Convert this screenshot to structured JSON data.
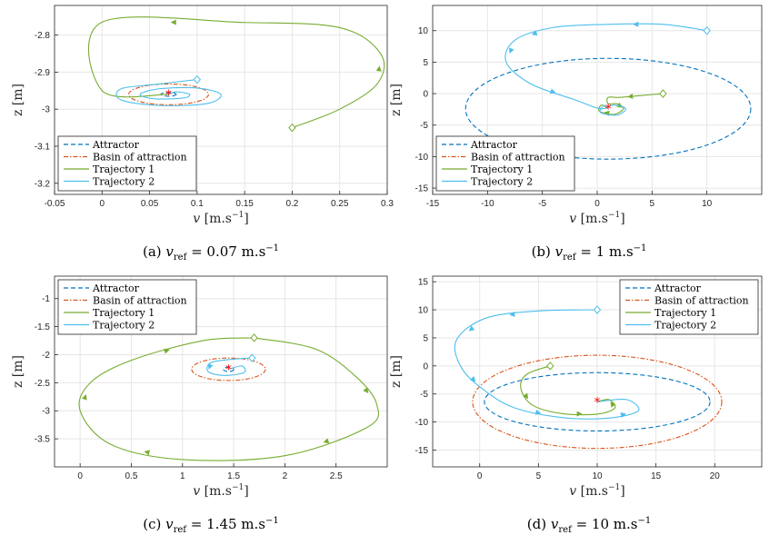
{
  "colors": {
    "attractor": "#0072BD",
    "basin": "#D95319",
    "traj1": "#77AC30",
    "traj2": "#4DBEEE",
    "equilibrium": "#FF0000",
    "grid": "#E6E6E6"
  },
  "chart_data": [
    {
      "type": "line",
      "caption": {
        "tag": "(a)",
        "sub": "ref",
        "value": "= 0.07 m.s",
        "exp": "−1"
      },
      "xlabel_main": "v",
      "xlabel_unit": "[m.s",
      "xlabel_exp": "−1",
      "xlabel_close": "]",
      "ylabel": "z [m]",
      "xlim": [
        -0.05,
        0.3
      ],
      "ylim": [
        -3.23,
        -2.72
      ],
      "xticks": [
        -0.05,
        0,
        0.05,
        0.1,
        0.15,
        0.2,
        0.25,
        0.3
      ],
      "xtick_labels": [
        "-0.05",
        "0",
        "0.05",
        "0.1",
        "0.15",
        "0.2",
        "0.25",
        "0.3"
      ],
      "yticks": [
        -3.2,
        -3.1,
        -3.0,
        -2.9,
        -2.8
      ],
      "ytick_labels": [
        "-3.2",
        "-3.1",
        "-3",
        "-2.9",
        "-2.8"
      ],
      "legend": {
        "placement": "bottom-left",
        "entries": [
          "Attractor",
          "Basin of attraction",
          "Trajectory 1",
          "Trajectory 2"
        ]
      },
      "equilibrium": [
        0.07,
        -2.96
      ],
      "attractor": {
        "center": [
          0.07,
          -2.96
        ],
        "rx": 0.008,
        "ry": 0.005
      },
      "basin": {
        "center": [
          0.07,
          -2.96
        ],
        "rx": 0.042,
        "ry": 0.028
      },
      "traj1": {
        "start": [
          0.2,
          -3.05
        ],
        "path": [
          [
            0.2,
            -3.05
          ],
          [
            0.25,
            -3.0
          ],
          [
            0.29,
            -2.93
          ],
          [
            0.293,
            -2.85
          ],
          [
            0.25,
            -2.78
          ],
          [
            0.15,
            -2.766
          ],
          [
            0.0,
            -2.765
          ],
          [
            0.0,
            -2.95
          ],
          [
            0.07,
            -2.96
          ]
        ],
        "arrows": [
          2,
          5
        ]
      },
      "traj2": {
        "start": [
          0.1,
          -2.92
        ],
        "path": [
          [
            0.1,
            -2.92
          ],
          [
            0.06,
            -2.932
          ],
          [
            0.02,
            -2.945
          ],
          [
            0.02,
            -2.975
          ],
          [
            0.06,
            -2.99
          ],
          [
            0.11,
            -2.985
          ],
          [
            0.125,
            -2.96
          ],
          [
            0.1,
            -2.943
          ],
          [
            0.06,
            -2.945
          ],
          [
            0.04,
            -2.96
          ],
          [
            0.055,
            -2.972
          ],
          [
            0.085,
            -2.97
          ],
          [
            0.092,
            -2.96
          ],
          [
            0.078,
            -2.953
          ],
          [
            0.07,
            -2.96
          ]
        ],
        "arrows": []
      }
    },
    {
      "type": "line",
      "caption": {
        "tag": "(b)",
        "sub": "ref",
        "value": "= 1 m.s",
        "exp": "−1"
      },
      "xlabel_main": "v",
      "xlabel_unit": "[m.s",
      "xlabel_exp": "−1",
      "xlabel_close": "]",
      "ylabel": "z [m]",
      "xlim": [
        -15,
        15
      ],
      "ylim": [
        -16,
        14
      ],
      "xticks": [
        -15,
        -10,
        -5,
        0,
        5,
        10
      ],
      "xtick_labels": [
        "-15",
        "-10",
        "-5",
        "0",
        "5",
        "10"
      ],
      "yticks": [
        -15,
        -10,
        -5,
        0,
        5,
        10
      ],
      "ytick_labels": [
        "-15",
        "-10",
        "-5",
        "0",
        "5",
        "10"
      ],
      "legend": {
        "placement": "bottom-left",
        "entries": [
          "Attractor",
          "Basin of attraction",
          "Trajectory 1",
          "Trajectory 2"
        ]
      },
      "equilibrium": [
        1,
        -2.4
      ],
      "attractor": {
        "center": [
          1,
          -2.4
        ],
        "rx": 13,
        "ry": 8
      },
      "basin": null,
      "traj1": {
        "start": [
          6,
          0
        ],
        "path": [
          [
            6,
            0
          ],
          [
            4,
            -0.3
          ],
          [
            2,
            -0.6
          ],
          [
            1,
            -0.6
          ],
          [
            1,
            -1.6
          ],
          [
            1.8,
            -1.6
          ],
          [
            2.4,
            -2.4
          ],
          [
            1.5,
            -3.3
          ],
          [
            0.2,
            -2.8
          ],
          [
            0.4,
            -1.8
          ],
          [
            1,
            -2.4
          ]
        ],
        "arrows": [
          1,
          5,
          7
        ]
      },
      "traj2": {
        "start": [
          10,
          10
        ],
        "path": [
          [
            10,
            10
          ],
          [
            6,
            11
          ],
          [
            1,
            11
          ],
          [
            -4,
            10.5
          ],
          [
            -7.5,
            8.5
          ],
          [
            -8.3,
            5
          ],
          [
            -6,
            1.5
          ],
          [
            -2,
            -1
          ],
          [
            0.3,
            -2.4
          ],
          [
            1.5,
            -1.8
          ],
          [
            2.6,
            -2.4
          ],
          [
            1.8,
            -3.4
          ],
          [
            0.3,
            -3
          ],
          [
            0.6,
            -1.9
          ],
          [
            1,
            -2.4
          ]
        ],
        "arrows": [
          1,
          3,
          4,
          6
        ]
      }
    },
    {
      "type": "line",
      "caption": {
        "tag": "(c)",
        "sub": "ref",
        "value": "= 1.45 m.s",
        "exp": "−1"
      },
      "xlabel_main": "v",
      "xlabel_unit": "[m.s",
      "xlabel_exp": "−1",
      "xlabel_close": "]",
      "ylabel": "z [m]",
      "xlim": [
        -0.25,
        3.0
      ],
      "ylim": [
        -4.0,
        -0.6
      ],
      "xticks": [
        0,
        0.5,
        1,
        1.5,
        2,
        2.5
      ],
      "xtick_labels": [
        "0",
        "0.5",
        "1",
        "1.5",
        "2",
        "2.5"
      ],
      "yticks": [
        -3.5,
        -3,
        -2.5,
        -2,
        -1.5,
        -1
      ],
      "ytick_labels": [
        "-3.5",
        "-3",
        "-2.5",
        "-2",
        "-1.5",
        "-1"
      ],
      "legend": {
        "placement": "top-left",
        "entries": [
          "Attractor",
          "Basin of attraction",
          "Trajectory 1",
          "Trajectory 2"
        ]
      },
      "equilibrium": [
        1.45,
        -2.26
      ],
      "attractor": {
        "center": [
          1.45,
          -2.26
        ],
        "rx": 0.05,
        "ry": 0.04
      },
      "basin": {
        "center": [
          1.45,
          -2.26
        ],
        "rx": 0.36,
        "ry": 0.2
      },
      "traj1": {
        "start": [
          1.7,
          -1.7
        ],
        "path": [
          [
            1.7,
            -1.7
          ],
          [
            2.3,
            -1.9
          ],
          [
            2.7,
            -2.4
          ],
          [
            2.9,
            -2.9
          ],
          [
            2.8,
            -3.3
          ],
          [
            2.0,
            -3.8
          ],
          [
            1.0,
            -3.87
          ],
          [
            0.3,
            -3.6
          ],
          [
            0,
            -3.0
          ],
          [
            0.1,
            -2.5
          ],
          [
            0.5,
            -2.1
          ],
          [
            1.2,
            -1.75
          ],
          [
            1.7,
            -1.7
          ]
        ],
        "arrows": [
          2,
          4,
          6,
          8,
          10
        ]
      },
      "traj2": {
        "start": [
          1.68,
          -2.06
        ],
        "path": [
          [
            1.68,
            -2.06
          ],
          [
            1.5,
            -2.08
          ],
          [
            1.28,
            -2.14
          ],
          [
            1.25,
            -2.3
          ],
          [
            1.4,
            -2.37
          ],
          [
            1.6,
            -2.32
          ],
          [
            1.58,
            -2.2
          ],
          [
            1.45,
            -2.26
          ]
        ],
        "arrows": [
          2
        ]
      }
    },
    {
      "type": "line",
      "caption": {
        "tag": "(d)",
        "sub": "ref",
        "value": "= 10 m.s",
        "exp": "−1"
      },
      "xlabel_main": "v",
      "xlabel_unit": "[m.s",
      "xlabel_exp": "−1",
      "xlabel_close": "]",
      "ylabel": "z [m]",
      "xlim": [
        -4,
        24
      ],
      "ylim": [
        -18,
        16
      ],
      "xticks": [
        0,
        5,
        10,
        15,
        20
      ],
      "xtick_labels": [
        "0",
        "5",
        "10",
        "15",
        "20"
      ],
      "yticks": [
        -15,
        -10,
        -5,
        0,
        5,
        10,
        15
      ],
      "ytick_labels": [
        "-15",
        "-10",
        "-5",
        "0",
        "5",
        "10",
        "15"
      ],
      "legend": {
        "placement": "top-right",
        "entries": [
          "Attractor",
          "Basin of attraction",
          "Trajectory 1",
          "Trajectory 2"
        ]
      },
      "equilibrium": [
        10,
        -6.4
      ],
      "attractor": {
        "center": [
          10,
          -6.4
        ],
        "rx": 9.6,
        "ry": 5.2
      },
      "basin": {
        "center": [
          10,
          -6.4
        ],
        "rx": 10.6,
        "ry": 8.3
      },
      "traj1": {
        "start": [
          6,
          0
        ],
        "path": [
          [
            6,
            0
          ],
          [
            4,
            -1.5
          ],
          [
            3.5,
            -4
          ],
          [
            4.5,
            -7
          ],
          [
            7,
            -8.5
          ],
          [
            10,
            -8.6
          ],
          [
            11.5,
            -7.5
          ],
          [
            11,
            -6
          ],
          [
            10,
            -6.4
          ]
        ],
        "arrows": [
          2,
          4,
          6
        ]
      },
      "traj2": {
        "start": [
          10,
          10
        ],
        "path": [
          [
            10,
            10
          ],
          [
            5,
            9.8
          ],
          [
            0.5,
            8.5
          ],
          [
            -2,
            4.5
          ],
          [
            -1.5,
            -0.5
          ],
          [
            0.5,
            -4.5
          ],
          [
            3,
            -7.5
          ],
          [
            7,
            -9.2
          ],
          [
            11,
            -9.3
          ],
          [
            13.5,
            -8
          ],
          [
            12.5,
            -6
          ],
          [
            10,
            -6.4
          ]
        ],
        "arrows": [
          1,
          2,
          4,
          6,
          8
        ]
      }
    }
  ]
}
